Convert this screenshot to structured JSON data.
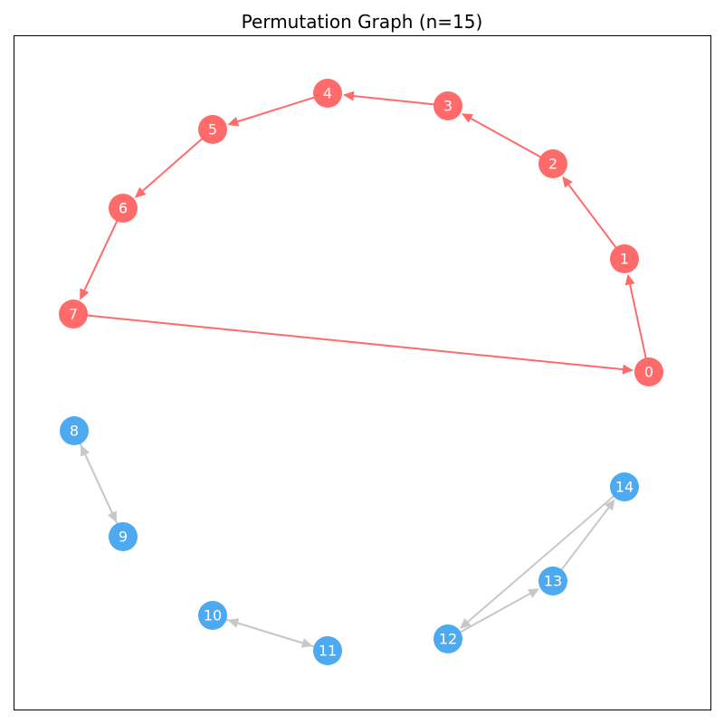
{
  "title": "Permutation Graph (n=15)",
  "colors": {
    "cycle_node": "#ff6b6b",
    "cycle_edge": "#ff6b6b",
    "other_node": "#4da9f0",
    "other_edge": "#c8c8c8",
    "frame": "#000000",
    "label": "#ffffff"
  },
  "nodes": [
    {
      "id": "0",
      "group": "cycle"
    },
    {
      "id": "1",
      "group": "cycle"
    },
    {
      "id": "2",
      "group": "cycle"
    },
    {
      "id": "3",
      "group": "cycle"
    },
    {
      "id": "4",
      "group": "cycle"
    },
    {
      "id": "5",
      "group": "cycle"
    },
    {
      "id": "6",
      "group": "cycle"
    },
    {
      "id": "7",
      "group": "cycle"
    },
    {
      "id": "8",
      "group": "other"
    },
    {
      "id": "9",
      "group": "other"
    },
    {
      "id": "10",
      "group": "other"
    },
    {
      "id": "11",
      "group": "other"
    },
    {
      "id": "12",
      "group": "other"
    },
    {
      "id": "13",
      "group": "other"
    },
    {
      "id": "14",
      "group": "other"
    }
  ],
  "edges": [
    {
      "from": "0",
      "to": "1",
      "group": "cycle"
    },
    {
      "from": "1",
      "to": "2",
      "group": "cycle"
    },
    {
      "from": "2",
      "to": "3",
      "group": "cycle"
    },
    {
      "from": "3",
      "to": "4",
      "group": "cycle"
    },
    {
      "from": "4",
      "to": "5",
      "group": "cycle"
    },
    {
      "from": "5",
      "to": "6",
      "group": "cycle"
    },
    {
      "from": "6",
      "to": "7",
      "group": "cycle"
    },
    {
      "from": "7",
      "to": "0",
      "group": "cycle"
    },
    {
      "from": "8",
      "to": "9",
      "group": "other"
    },
    {
      "from": "9",
      "to": "8",
      "group": "other"
    },
    {
      "from": "10",
      "to": "11",
      "group": "other"
    },
    {
      "from": "11",
      "to": "10",
      "group": "other"
    },
    {
      "from": "12",
      "to": "13",
      "group": "other"
    },
    {
      "from": "13",
      "to": "14",
      "group": "other"
    },
    {
      "from": "14",
      "to": "12",
      "group": "other"
    }
  ]
}
